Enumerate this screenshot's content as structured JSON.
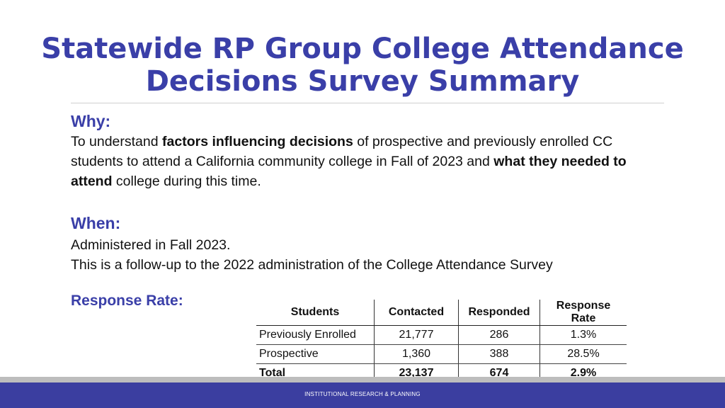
{
  "title": {
    "line1": "Statewide RP Group College Attendance",
    "line2": "Decisions Survey Summary"
  },
  "why": {
    "heading": "Why:",
    "text_1": "To understand ",
    "bold_1": "factors influencing decisions",
    "text_2": " of prospective and previously enrolled CC students to attend a California community college in Fall of 2023 and ",
    "bold_2": "what they needed to attend",
    "text_3": " college during this time."
  },
  "when": {
    "heading": "When:",
    "line1": "Administered in Fall 2023.",
    "line2": "This is a follow-up to the 2022 administration of the College Attendance Survey"
  },
  "response": {
    "heading": "Response Rate:",
    "columns": [
      "Students",
      "Contacted",
      "Responded",
      "Response Rate"
    ],
    "rows": [
      [
        "Previously Enrolled",
        "21,777",
        "286",
        "1.3%"
      ],
      [
        "Prospective",
        "1,360",
        "388",
        "28.5%"
      ],
      [
        "Total",
        "23,137",
        "674",
        "2.9%"
      ]
    ]
  },
  "footer": {
    "text": "INSTITUTIONAL RESEARCH & PLANNING"
  },
  "colors": {
    "accent": "#3a3fa8",
    "footer_bar": "#3b3ea0",
    "footer_stripe": "#bdbdbd"
  }
}
